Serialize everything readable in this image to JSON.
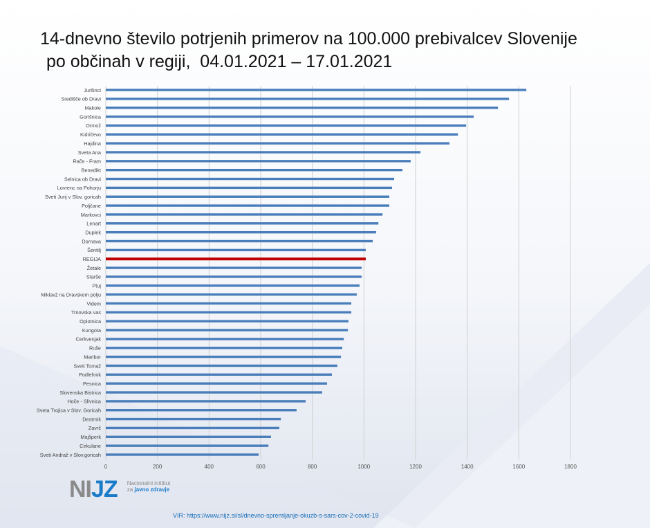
{
  "title_line1": "14-dnevno število potrjenih primerov na 100.000 prebivalcev Slovenije",
  "title_line2": " po občinah v regiji,  04.01.2021 – 17.01.2021",
  "logo": {
    "mark_gray": "NI",
    "mark_blue": "JZ",
    "line1": "Nacionalni inštitut",
    "line2_prefix": "za",
    "line2_bold": "javno zdravje"
  },
  "source": "VIR: https://www.nijz.si/sl/dnevno-spremljanje-okuzb-s-sars-cov-2-covid-19",
  "colors": {
    "bar": "#4a7ebb",
    "highlight": "#c00000",
    "grid": "#d0d0d0"
  },
  "chart_data": {
    "type": "bar",
    "orientation": "horizontal",
    "xlim": [
      0,
      1800
    ],
    "xticks": [
      0,
      200,
      400,
      600,
      800,
      1000,
      1200,
      1400,
      1600,
      1800
    ],
    "grid": true,
    "highlight_category": "REGIJA",
    "categories": [
      "Juršinci",
      "Središče ob Dravi",
      "Makole",
      "Gorišnica",
      "Ormož",
      "Kidričevo",
      "Hajdina",
      "Sveta Ana",
      "Rače - Fram",
      "Benedikt",
      "Selnica ob Dravi",
      "Lovrenc na Pohorju",
      "Sveti Jurij v Slov. goricah",
      "Poljčane",
      "Markovci",
      "Lenart",
      "Duplek",
      "Dornava",
      "Šentilj",
      "REGIJA",
      "Žetale",
      "Starše",
      "Ptuj",
      "Miklavž na Dravskem polju",
      "Videm",
      "Trnovska vas",
      "Oplotnica",
      "Kungota",
      "Cerkvenjak",
      "Ruše",
      "Maribor",
      "Sveti Tomaž",
      "Podlehnik",
      "Pesnica",
      "Slovenska Bistrica",
      "Hoče - Slivnica",
      "Sveta Trojica v Slov. Goricah",
      "Destrnik",
      "Zavrč",
      "Majšperk",
      "Cirkulane",
      "Sveti Andraž v Slov.goricah"
    ],
    "values": [
      1629,
      1562,
      1519,
      1425,
      1396,
      1364,
      1331,
      1219,
      1181,
      1149,
      1117,
      1109,
      1098,
      1098,
      1072,
      1056,
      1047,
      1034,
      1007,
      1007,
      991,
      991,
      983,
      972,
      951,
      951,
      940,
      938,
      922,
      916,
      911,
      897,
      876,
      857,
      838,
      774,
      739,
      678,
      672,
      640,
      630,
      592
    ]
  }
}
